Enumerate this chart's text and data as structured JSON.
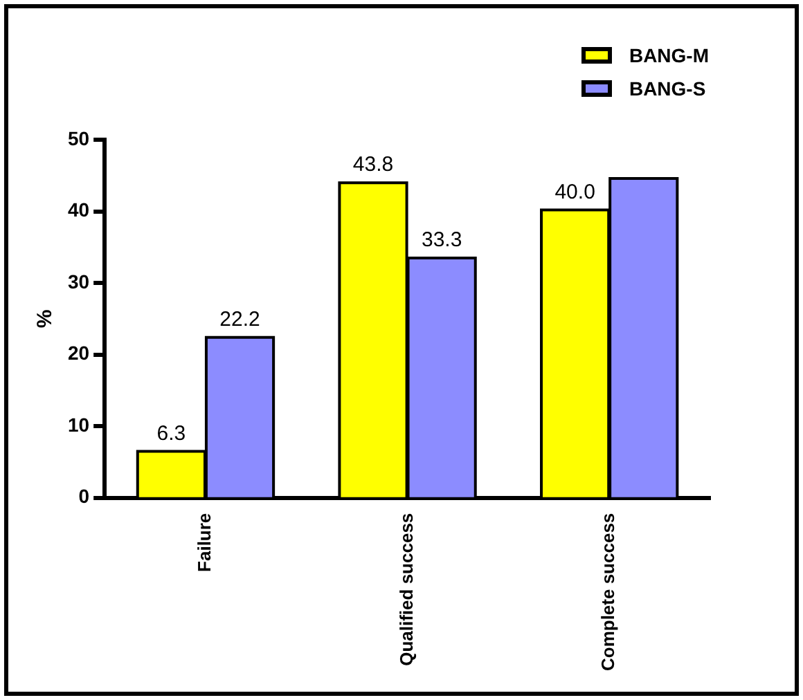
{
  "chart_data": {
    "type": "bar",
    "ylabel": "%",
    "categories": [
      "Failure",
      "Qualified success",
      "Complete success"
    ],
    "series": [
      {
        "name": "BANG-M",
        "color": "#ffff00",
        "values": [
          6.3,
          43.8,
          40.0
        ],
        "value_labels": [
          "6.3",
          "43.8",
          "40.0"
        ]
      },
      {
        "name": "BANG-S",
        "color": "#8c8cff",
        "values": [
          22.2,
          33.3,
          44.4
        ],
        "value_labels": [
          "22.2",
          "33.3",
          null
        ]
      }
    ],
    "ylim": [
      0,
      50
    ],
    "yticks": [
      0,
      10,
      20,
      30,
      40,
      50
    ],
    "grid": false,
    "legend": "top right"
  }
}
